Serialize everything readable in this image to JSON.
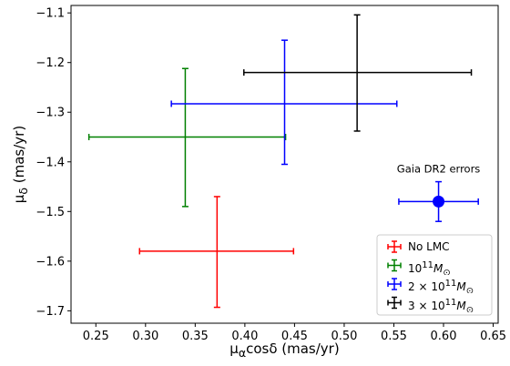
{
  "chart_data": {
    "type": "scatter",
    "xlabel_html": "μ<sub>α</sub>cosδ (mas/yr)",
    "ylabel_html": "μ<sub>δ</sub> (mas/yr)",
    "xlim": [
      0.225,
      0.655
    ],
    "ylim": [
      -1.725,
      -1.085
    ],
    "xticks": [
      0.25,
      0.3,
      0.35,
      0.4,
      0.45,
      0.5,
      0.55,
      0.6,
      0.65
    ],
    "xtick_labels": [
      "0.25",
      "0.30",
      "0.35",
      "0.40",
      "0.45",
      "0.50",
      "0.55",
      "0.60",
      "0.65"
    ],
    "yticks": [
      -1.1,
      -1.2,
      -1.3,
      -1.4,
      -1.5,
      -1.6,
      -1.7
    ],
    "ytick_labels": [
      "−1.1",
      "−1.2",
      "−1.3",
      "−1.4",
      "−1.5",
      "−1.6",
      "−1.7"
    ],
    "grid": false,
    "legend_position": "lower-right",
    "series": [
      {
        "name": "No LMC",
        "legend_html": "No LMC",
        "color": "#ff0000",
        "x": 0.372,
        "y": -1.58,
        "xerr": [
          0.078,
          0.077
        ],
        "yerr": [
          0.113,
          0.11
        ]
      },
      {
        "name": "10^11 M_sun",
        "legend_html": "10<sup>11</sup><i>M</i><sub>⊙</sub>",
        "color": "#008000",
        "x": 0.34,
        "y": -1.35,
        "xerr": [
          0.097,
          0.101
        ],
        "yerr": [
          0.14,
          0.138
        ]
      },
      {
        "name": "2 × 10^11 M_sun",
        "legend_html": "2 × 10<sup>11</sup><i>M</i><sub>⊙</sub>",
        "color": "#0000ff",
        "x": 0.44,
        "y": -1.283,
        "xerr": [
          0.114,
          0.113
        ],
        "yerr": [
          0.122,
          0.128
        ]
      },
      {
        "name": "3 × 10^11 M_sun",
        "legend_html": "3 × 10<sup>11</sup><i>M</i><sub>⊙</sub>",
        "color": "#000000",
        "x": 0.513,
        "y": -1.22,
        "xerr": [
          0.114,
          0.115
        ],
        "yerr": [
          0.118,
          0.116
        ]
      }
    ],
    "gaia_errors": {
      "label": "Gaia DR2 errors",
      "color": "#0000ff",
      "x": 0.595,
      "y": -1.48,
      "xerr": [
        0.04,
        0.04
      ],
      "yerr": [
        0.04,
        0.04
      ]
    }
  }
}
